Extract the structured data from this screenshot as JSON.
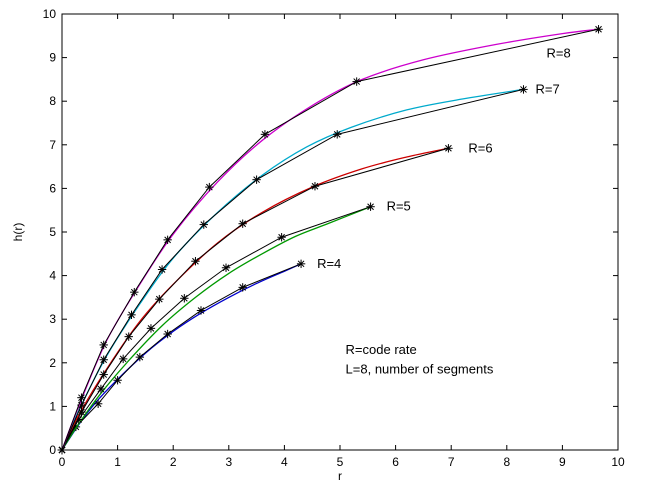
{
  "chart_data": {
    "type": "line",
    "title": "",
    "xlabel": "r",
    "ylabel": "h(r)",
    "xlim": [
      0,
      10
    ],
    "ylim": [
      0,
      10
    ],
    "xticks": [
      0,
      1,
      2,
      3,
      4,
      5,
      6,
      7,
      8,
      9,
      10
    ],
    "yticks": [
      0,
      1,
      2,
      3,
      4,
      5,
      6,
      7,
      8,
      9,
      10
    ],
    "grid": false,
    "annotations": [
      "R=code rate",
      "L=8, number of segments"
    ],
    "series": [
      {
        "name": "R=4",
        "color": "#0000cc",
        "curve_x": [
          0,
          0.3,
          0.6,
          1.0,
          1.5,
          2.0,
          2.5,
          3.0,
          3.5,
          4.0,
          4.3
        ],
        "curve_y": [
          0,
          0.58,
          1.08,
          1.62,
          2.22,
          2.72,
          3.14,
          3.5,
          3.82,
          4.1,
          4.27
        ],
        "segments_x": [
          0,
          0.25,
          0.65,
          1.0,
          1.4,
          1.9,
          2.5,
          3.25,
          4.3
        ],
        "segments_y": [
          0,
          0.53,
          1.06,
          1.6,
          2.13,
          2.66,
          3.2,
          3.73,
          4.27
        ]
      },
      {
        "name": "R=5",
        "color": "#009900",
        "curve_x": [
          0,
          0.3,
          0.7,
          1.2,
          1.8,
          2.4,
          3.0,
          3.6,
          4.2,
          4.8,
          5.55
        ],
        "curve_y": [
          0,
          0.6,
          1.3,
          2.05,
          2.85,
          3.5,
          4.05,
          4.5,
          4.9,
          5.2,
          5.58
        ],
        "segments_x": [
          0,
          0.3,
          0.7,
          1.1,
          1.6,
          2.2,
          2.95,
          3.95,
          5.55
        ],
        "segments_y": [
          0,
          0.7,
          1.4,
          2.09,
          2.79,
          3.48,
          4.18,
          4.88,
          5.58
        ]
      },
      {
        "name": "R=6",
        "color": "#cc0000",
        "curve_x": [
          0,
          0.3,
          0.8,
          1.4,
          2.0,
          2.8,
          3.6,
          4.5,
          5.4,
          6.2,
          6.95
        ],
        "curve_y": [
          0,
          0.8,
          1.85,
          2.95,
          3.8,
          4.75,
          5.45,
          6.03,
          6.45,
          6.72,
          6.92
        ],
        "segments_x": [
          0,
          0.35,
          0.75,
          1.2,
          1.75,
          2.4,
          3.25,
          4.55,
          6.95
        ],
        "segments_y": [
          0,
          0.87,
          1.73,
          2.6,
          3.46,
          4.33,
          5.19,
          6.05,
          6.92
        ]
      },
      {
        "name": "R=7",
        "color": "#00aacc",
        "curve_x": [
          0,
          0.3,
          0.8,
          1.4,
          2.0,
          2.8,
          3.6,
          4.4,
          5.2,
          6.2,
          7.2,
          8.3
        ],
        "curve_y": [
          0,
          0.9,
          2.15,
          3.35,
          4.4,
          5.45,
          6.3,
          6.95,
          7.4,
          7.8,
          8.05,
          8.27
        ],
        "segments_x": [
          0,
          0.35,
          0.75,
          1.25,
          1.8,
          2.55,
          3.5,
          4.95,
          8.3
        ],
        "segments_y": [
          0,
          1.03,
          2.07,
          3.1,
          4.14,
          5.17,
          6.2,
          7.24,
          8.27
        ]
      },
      {
        "name": "R=8",
        "color": "#cc00cc",
        "curve_x": [
          0,
          0.3,
          0.8,
          1.4,
          2.0,
          2.8,
          3.6,
          4.5,
          5.4,
          6.5,
          7.8,
          9.0,
          9.65
        ],
        "curve_y": [
          0,
          1.0,
          2.5,
          3.8,
          4.95,
          6.15,
          7.1,
          7.9,
          8.5,
          8.95,
          9.3,
          9.55,
          9.65
        ],
        "segments_x": [
          0,
          0.35,
          0.75,
          1.3,
          1.9,
          2.65,
          3.65,
          5.3,
          9.65
        ],
        "segments_y": [
          0,
          1.2,
          2.41,
          3.62,
          4.82,
          6.03,
          7.24,
          8.45,
          9.65
        ]
      }
    ]
  }
}
